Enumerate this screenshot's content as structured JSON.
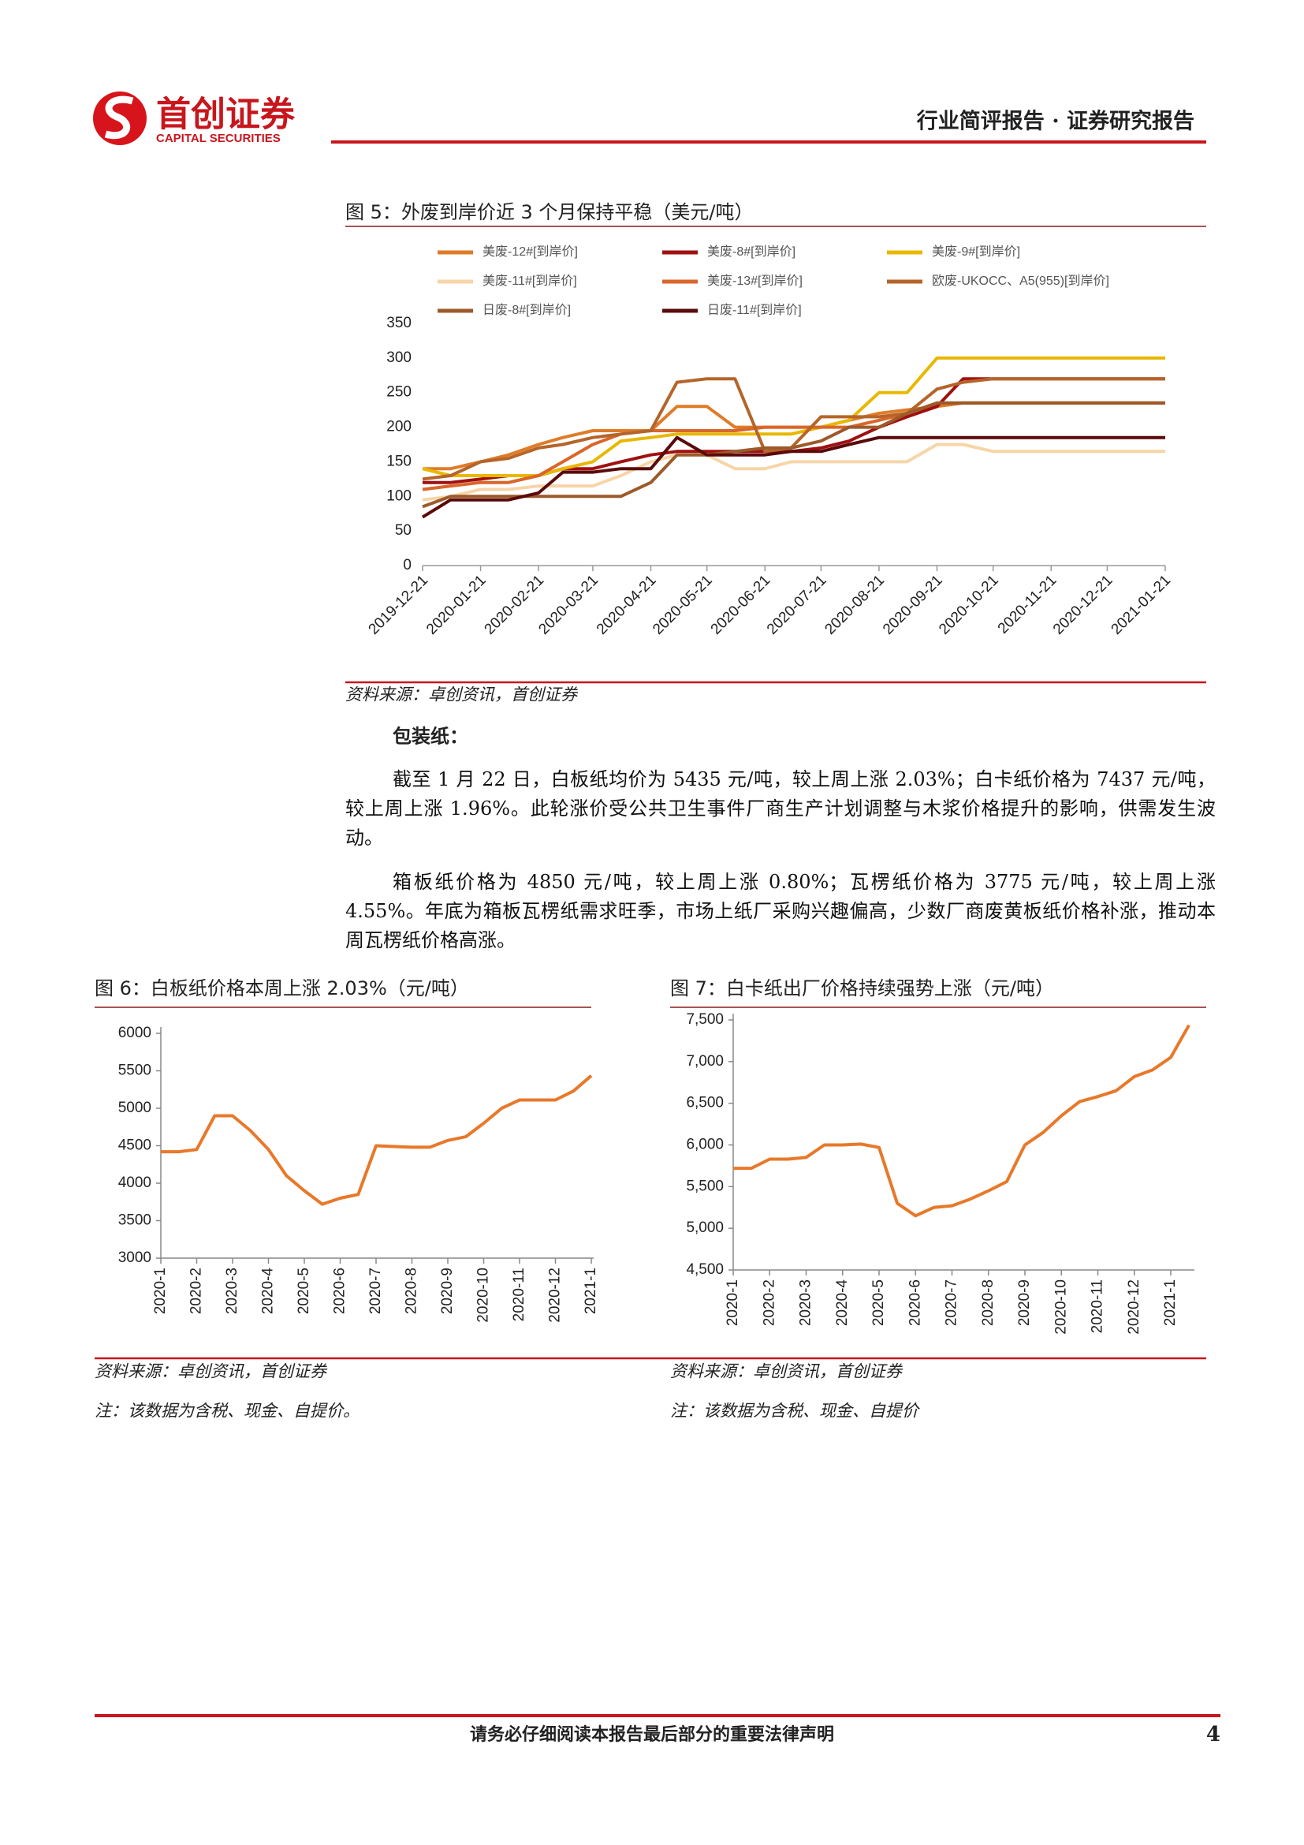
{
  "header": {
    "brand": "首创证券",
    "brand_en": "CAPITAL SECURITIES",
    "report_type": "行业简评报告 · 证券研究报告"
  },
  "chart_data": [
    {
      "type": "line",
      "title": "图 5：外废到岸价近 3 个月保持平稳（美元/吨）",
      "source": "资料来源：卓创资讯，首创证券",
      "legend": "top",
      "x": [
        "2019-12-21",
        "2020-01-05",
        "2020-01-21",
        "2020-02-05",
        "2020-02-21",
        "2020-03-05",
        "2020-03-21",
        "2020-04-05",
        "2020-04-21",
        "2020-05-05",
        "2020-05-21",
        "2020-06-05",
        "2020-06-21",
        "2020-07-05",
        "2020-07-21",
        "2020-08-05",
        "2020-08-21",
        "2020-09-05",
        "2020-09-21",
        "2020-10-05",
        "2020-10-21",
        "2020-11-05",
        "2020-11-21",
        "2020-12-05",
        "2020-12-21",
        "2021-01-05",
        "2021-01-21"
      ],
      "xlim": [
        "2019-12-21",
        "2021-01-21"
      ],
      "xticks": [
        "2019-12-21",
        "2020-01-21",
        "2020-02-21",
        "2020-03-21",
        "2020-04-21",
        "2020-05-21",
        "2020-06-21",
        "2020-07-21",
        "2020-08-21",
        "2020-09-21",
        "2020-10-21",
        "2020-11-21",
        "2020-12-21",
        "2021-01-21"
      ],
      "ylim": [
        0,
        350
      ],
      "yticks": [
        0,
        50,
        100,
        150,
        200,
        250,
        300,
        350
      ],
      "series": [
        {
          "name": "美废-12#[到岸价]",
          "color": "#e07b28",
          "values": [
            140,
            140,
            150,
            160,
            175,
            185,
            195,
            195,
            195,
            230,
            230,
            200,
            200,
            200,
            200,
            210,
            220,
            225,
            230,
            235,
            235,
            235,
            235,
            235,
            235,
            235,
            235
          ]
        },
        {
          "name": "美废-8#[到岸价]",
          "color": "#a01010",
          "values": [
            120,
            120,
            125,
            130,
            130,
            140,
            140,
            150,
            160,
            165,
            165,
            165,
            165,
            165,
            170,
            180,
            200,
            215,
            230,
            270,
            270,
            270,
            270,
            270,
            270,
            270,
            270
          ]
        },
        {
          "name": "美废-9#[到岸价]",
          "color": "#e8b800",
          "values": [
            140,
            130,
            130,
            130,
            130,
            140,
            150,
            180,
            185,
            190,
            190,
            190,
            190,
            190,
            200,
            210,
            250,
            250,
            300,
            300,
            300,
            300,
            300,
            300,
            300,
            300,
            300
          ]
        },
        {
          "name": "美废-11#[到岸价]",
          "color": "#f7d5a8",
          "values": [
            95,
            100,
            110,
            110,
            115,
            115,
            115,
            130,
            150,
            160,
            160,
            140,
            140,
            150,
            150,
            150,
            150,
            150,
            175,
            175,
            165,
            165,
            165,
            165,
            165,
            165,
            165
          ]
        },
        {
          "name": "美废-13#[到岸价]",
          "color": "#d9662a",
          "values": [
            110,
            115,
            120,
            120,
            130,
            150,
            175,
            190,
            195,
            195,
            195,
            195,
            200,
            200,
            200,
            200,
            210,
            220,
            235,
            235,
            235,
            235,
            235,
            235,
            235,
            235,
            235
          ]
        },
        {
          "name": "欧废-UKOCC、A5(955)[到岸价]",
          "color": "#b5652a",
          "values": [
            125,
            130,
            150,
            155,
            170,
            175,
            185,
            190,
            195,
            265,
            270,
            270,
            165,
            170,
            215,
            215,
            215,
            220,
            255,
            265,
            270,
            270,
            270,
            270,
            270,
            270,
            270
          ]
        },
        {
          "name": "日废-8#[到岸价]",
          "color": "#9c5a2a",
          "values": [
            85,
            100,
            100,
            100,
            100,
            100,
            100,
            100,
            120,
            160,
            160,
            165,
            170,
            170,
            180,
            200,
            200,
            220,
            235,
            235,
            235,
            235,
            235,
            235,
            235,
            235,
            235
          ]
        },
        {
          "name": "日废-11#[到岸价]",
          "color": "#5a0a0a",
          "values": [
            70,
            95,
            95,
            95,
            105,
            135,
            135,
            140,
            140,
            185,
            160,
            160,
            160,
            165,
            165,
            175,
            185,
            185,
            185,
            185,
            185,
            185,
            185,
            185,
            185,
            185,
            185
          ]
        }
      ]
    },
    {
      "type": "line",
      "title": "图 6：白板纸价格本周上涨 2.03%（元/吨）",
      "source": "资料来源：卓创资讯，首创证券",
      "note": "注：该数据为含税、现金、自提价。",
      "color": "#e8782a",
      "categories": [
        "2020-1",
        null,
        "2020-2",
        null,
        "2020-3",
        null,
        "2020-4",
        null,
        "2020-5",
        null,
        "2020-6",
        null,
        "2020-7",
        null,
        "2020-8",
        null,
        "2020-9",
        null,
        "2020-10",
        null,
        "2020-11",
        null,
        "2020-12",
        null,
        "2021-1"
      ],
      "values": [
        4420,
        4420,
        4450,
        4900,
        4900,
        4700,
        4450,
        4100,
        3900,
        3720,
        3800,
        3850,
        4500,
        4490,
        4480,
        4480,
        4570,
        4620,
        4800,
        5000,
        5110,
        5110,
        5110,
        5230,
        5435
      ],
      "ylim": [
        3000,
        6000
      ],
      "yticks": [
        3000,
        3500,
        4000,
        4500,
        5000,
        5500,
        6000
      ]
    },
    {
      "type": "line",
      "title": "图 7：白卡纸出厂价格持续强势上涨（元/吨）",
      "source": "资料来源：卓创资讯，首创证券",
      "note": "注：该数据为含税、现金、自提价",
      "color": "#e8782a",
      "categories": [
        "2020-1",
        null,
        "2020-2",
        null,
        "2020-3",
        null,
        "2020-4",
        null,
        "2020-5",
        null,
        "2020-6",
        null,
        "2020-7",
        null,
        "2020-8",
        null,
        "2020-9",
        null,
        "2020-10",
        null,
        "2020-11",
        null,
        "2020-12",
        null,
        "2021-1",
        null
      ],
      "values": [
        5720,
        5720,
        5830,
        5830,
        5850,
        6000,
        6000,
        6010,
        5970,
        5300,
        5150,
        5250,
        5270,
        5350,
        5450,
        5560,
        6000,
        6150,
        6350,
        6520,
        6580,
        6650,
        6820,
        6900,
        7050,
        7437
      ],
      "ylim": [
        4500,
        7500
      ],
      "yticks": [
        {
          "value": 4500,
          "label": "4,500"
        },
        {
          "value": 5000,
          "label": "5,000"
        },
        {
          "value": 5500,
          "label": "5,500"
        },
        {
          "value": 6000,
          "label": "6,000"
        },
        {
          "value": 6500,
          "label": "6,500"
        },
        {
          "value": 7000,
          "label": "7,000"
        },
        {
          "value": 7500,
          "label": "7,500"
        }
      ]
    }
  ],
  "section": {
    "heading": "包装纸：",
    "paragraphs": [
      "截至 1 月 22 日，白板纸均价为 5435 元/吨，较上周上涨 2.03%；白卡纸价格为 7437 元/吨，较上周上涨 1.96%。此轮涨价受公共卫生事件厂商生产计划调整与木浆价格提升的影响，供需发生波动。",
      "箱板纸价格为 4850 元/吨，较上周上涨 0.80%；瓦楞纸价格为 3775 元/吨，较上周上涨 4.55%。年底为箱板瓦楞纸需求旺季，市场上纸厂采购兴趣偏高，少数厂商废黄板纸价格补涨，推动本周瓦楞纸价格高涨。"
    ]
  },
  "footer": {
    "disclaimer": "请务必仔细阅读本报告最后部分的重要法律声明",
    "page": "4"
  }
}
